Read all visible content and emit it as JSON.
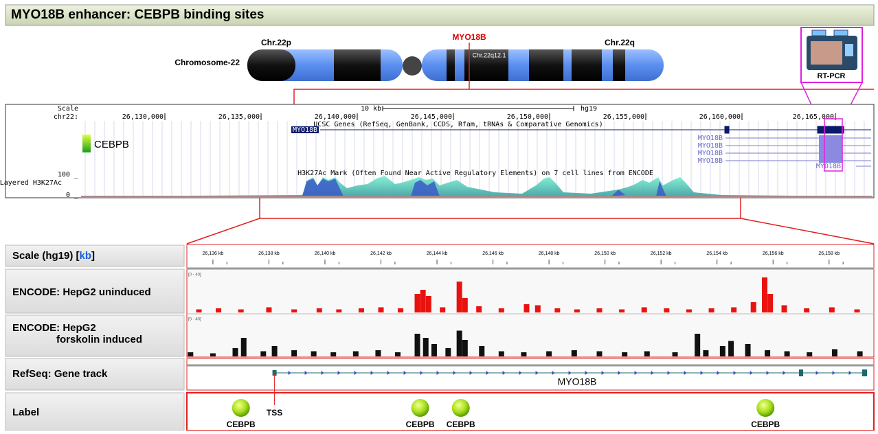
{
  "header": {
    "title": "MYO18B enhancer: CEBPB binding sites"
  },
  "chromosome": {
    "label": "Chromosome-22",
    "p_arm": "Chr.22p",
    "q_arm": "Chr.22q",
    "band": "Chr.22q12.1",
    "gene": "MYO18B"
  },
  "rtpcr": {
    "label": "RT-PCR"
  },
  "ucsc": {
    "scale": "Scale",
    "chrom": "chr22:",
    "scale_bar": "10 kb",
    "assembly": "hg19",
    "positions": [
      "26,130,000",
      "26,135,000",
      "26,140,000",
      "26,145,000",
      "26,150,000",
      "26,155,000",
      "26,160,000",
      "26,165,000"
    ],
    "gene_track": "UCSC Genes (RefSeq, GenBank, CCDS, Rfam, tRNAs & Comparative Genomics)",
    "genes": [
      "MYO18B",
      "MYO18B",
      "MYO18B",
      "MYO18B",
      "MYO18B",
      "MYO18B"
    ],
    "legend": "CEBPB",
    "track_max": "100 _",
    "track_min": "0 _",
    "track_name": "Layered H3K27Ac",
    "track_title": "H3K27Ac Mark (Often Found Near Active Regulatory Elements) on 7 cell lines from ENCODE"
  },
  "igv": {
    "xlim": [
      26135.07,
      26159.6
    ],
    "scale_label": {
      "before": "Scale (hg19) [",
      "unit": "kb",
      "after": "]"
    },
    "ticks": [
      {
        "value": 26136,
        "label": "26,136 kb"
      },
      {
        "value": 26138,
        "label": "26,138 kb"
      },
      {
        "value": 26140,
        "label": "26,140 kb"
      },
      {
        "value": 26142,
        "label": "26,142 kb"
      },
      {
        "value": 26144,
        "label": "26,144 kb"
      },
      {
        "value": 26146,
        "label": "26,146 kb"
      },
      {
        "value": 26148,
        "label": "26,148 kb"
      },
      {
        "value": 26150,
        "label": "26,150 kb"
      },
      {
        "value": 26152,
        "label": "26,152 kb"
      },
      {
        "value": 26154,
        "label": "26,154 kb"
      },
      {
        "value": 26156,
        "label": "26,156 kb"
      },
      {
        "value": 26158,
        "label": "26,158 kb"
      }
    ],
    "tracks": [
      {
        "label": "ENCODE: HepG2 uninduced",
        "range_label": "[0 - 40]",
        "ylim": [
          0,
          40
        ],
        "color": "#e8130f",
        "peaks": [
          [
            26135.5,
            3
          ],
          [
            26136.2,
            4
          ],
          [
            26137.0,
            3
          ],
          [
            26138.0,
            5
          ],
          [
            26138.9,
            3
          ],
          [
            26139.8,
            4
          ],
          [
            26140.5,
            3
          ],
          [
            26141.3,
            4
          ],
          [
            26142.0,
            5
          ],
          [
            26142.7,
            4
          ],
          [
            26143.3,
            18
          ],
          [
            26143.5,
            22
          ],
          [
            26143.7,
            16
          ],
          [
            26144.2,
            5
          ],
          [
            26144.8,
            30
          ],
          [
            26145.0,
            14
          ],
          [
            26145.5,
            6
          ],
          [
            26146.3,
            4
          ],
          [
            26147.2,
            8
          ],
          [
            26147.6,
            7
          ],
          [
            26148.3,
            4
          ],
          [
            26149.0,
            3
          ],
          [
            26149.8,
            4
          ],
          [
            26150.6,
            3
          ],
          [
            26151.4,
            5
          ],
          [
            26152.2,
            4
          ],
          [
            26153.0,
            3
          ],
          [
            26153.8,
            4
          ],
          [
            26154.6,
            5
          ],
          [
            26155.3,
            10
          ],
          [
            26155.7,
            34
          ],
          [
            26155.9,
            18
          ],
          [
            26156.4,
            7
          ],
          [
            26157.2,
            4
          ],
          [
            26158.1,
            5
          ],
          [
            26159.0,
            3
          ]
        ]
      },
      {
        "label": "ENCODE: HepG2",
        "label2": "forskolin induced",
        "range_label": "[0 - 40]",
        "ylim": [
          0,
          40
        ],
        "color": "#111111",
        "peaks": [
          [
            26135.2,
            4
          ],
          [
            26136.0,
            3
          ],
          [
            26136.8,
            8
          ],
          [
            26137.1,
            18
          ],
          [
            26137.8,
            5
          ],
          [
            26138.2,
            10
          ],
          [
            26138.9,
            6
          ],
          [
            26139.6,
            5
          ],
          [
            26140.3,
            4
          ],
          [
            26141.1,
            5
          ],
          [
            26141.9,
            6
          ],
          [
            26142.6,
            4
          ],
          [
            26143.3,
            22
          ],
          [
            26143.6,
            18
          ],
          [
            26143.9,
            12
          ],
          [
            26144.4,
            8
          ],
          [
            26144.8,
            25
          ],
          [
            26145.0,
            16
          ],
          [
            26145.6,
            10
          ],
          [
            26146.3,
            5
          ],
          [
            26147.1,
            4
          ],
          [
            26148.0,
            5
          ],
          [
            26148.9,
            6
          ],
          [
            26149.8,
            5
          ],
          [
            26150.7,
            4
          ],
          [
            26151.5,
            5
          ],
          [
            26152.5,
            4
          ],
          [
            26153.3,
            22
          ],
          [
            26153.6,
            6
          ],
          [
            26154.2,
            10
          ],
          [
            26154.5,
            15
          ],
          [
            26155.1,
            12
          ],
          [
            26155.8,
            6
          ],
          [
            26156.5,
            5
          ],
          [
            26157.3,
            4
          ],
          [
            26158.2,
            7
          ],
          [
            26159.1,
            5
          ]
        ]
      }
    ],
    "gene_label": "RefSeq: Gene track",
    "gene_name": "MYO18B",
    "tss": {
      "label": "TSS",
      "kb": 26138.2
    },
    "site_label": "Label",
    "sites": [
      {
        "label": "CEBPB",
        "kb": 26137.0
      },
      {
        "label": "CEBPB",
        "kb": 26143.4
      },
      {
        "label": "CEBPB",
        "kb": 26144.85
      },
      {
        "label": "CEBPB",
        "kb": 26155.73
      }
    ]
  }
}
